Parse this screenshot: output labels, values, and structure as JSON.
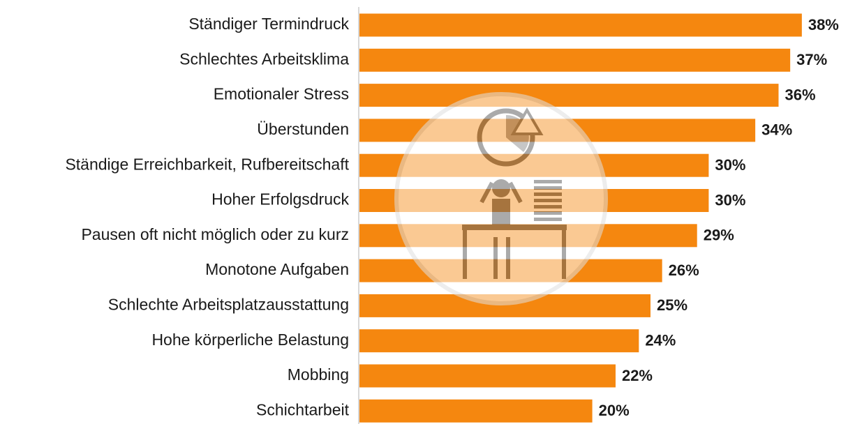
{
  "chart_data": {
    "type": "bar",
    "orientation": "horizontal",
    "color": "#f5870f",
    "categories": [
      "Ständiger Termindruck",
      "Schlechtes Arbeitsklima",
      "Emotionaler Stress",
      "Überstunden",
      "Ständige Erreichbarkeit, Rufbereitschaft",
      "Hoher Erfolgsdruck",
      "Pausen oft nicht möglich oder zu kurz",
      "Monotone Aufgaben",
      "Schlechte Arbeitsplatzausstattung",
      "Hohe körperliche Belastung",
      "Mobbing",
      "Schichtarbeit"
    ],
    "values": [
      38,
      37,
      36,
      34,
      30,
      30,
      29,
      26,
      25,
      24,
      22,
      20
    ],
    "value_labels": [
      "38%",
      "37%",
      "36%",
      "34%",
      "30%",
      "30%",
      "29%",
      "26%",
      "25%",
      "24%",
      "22%",
      "20%"
    ]
  }
}
